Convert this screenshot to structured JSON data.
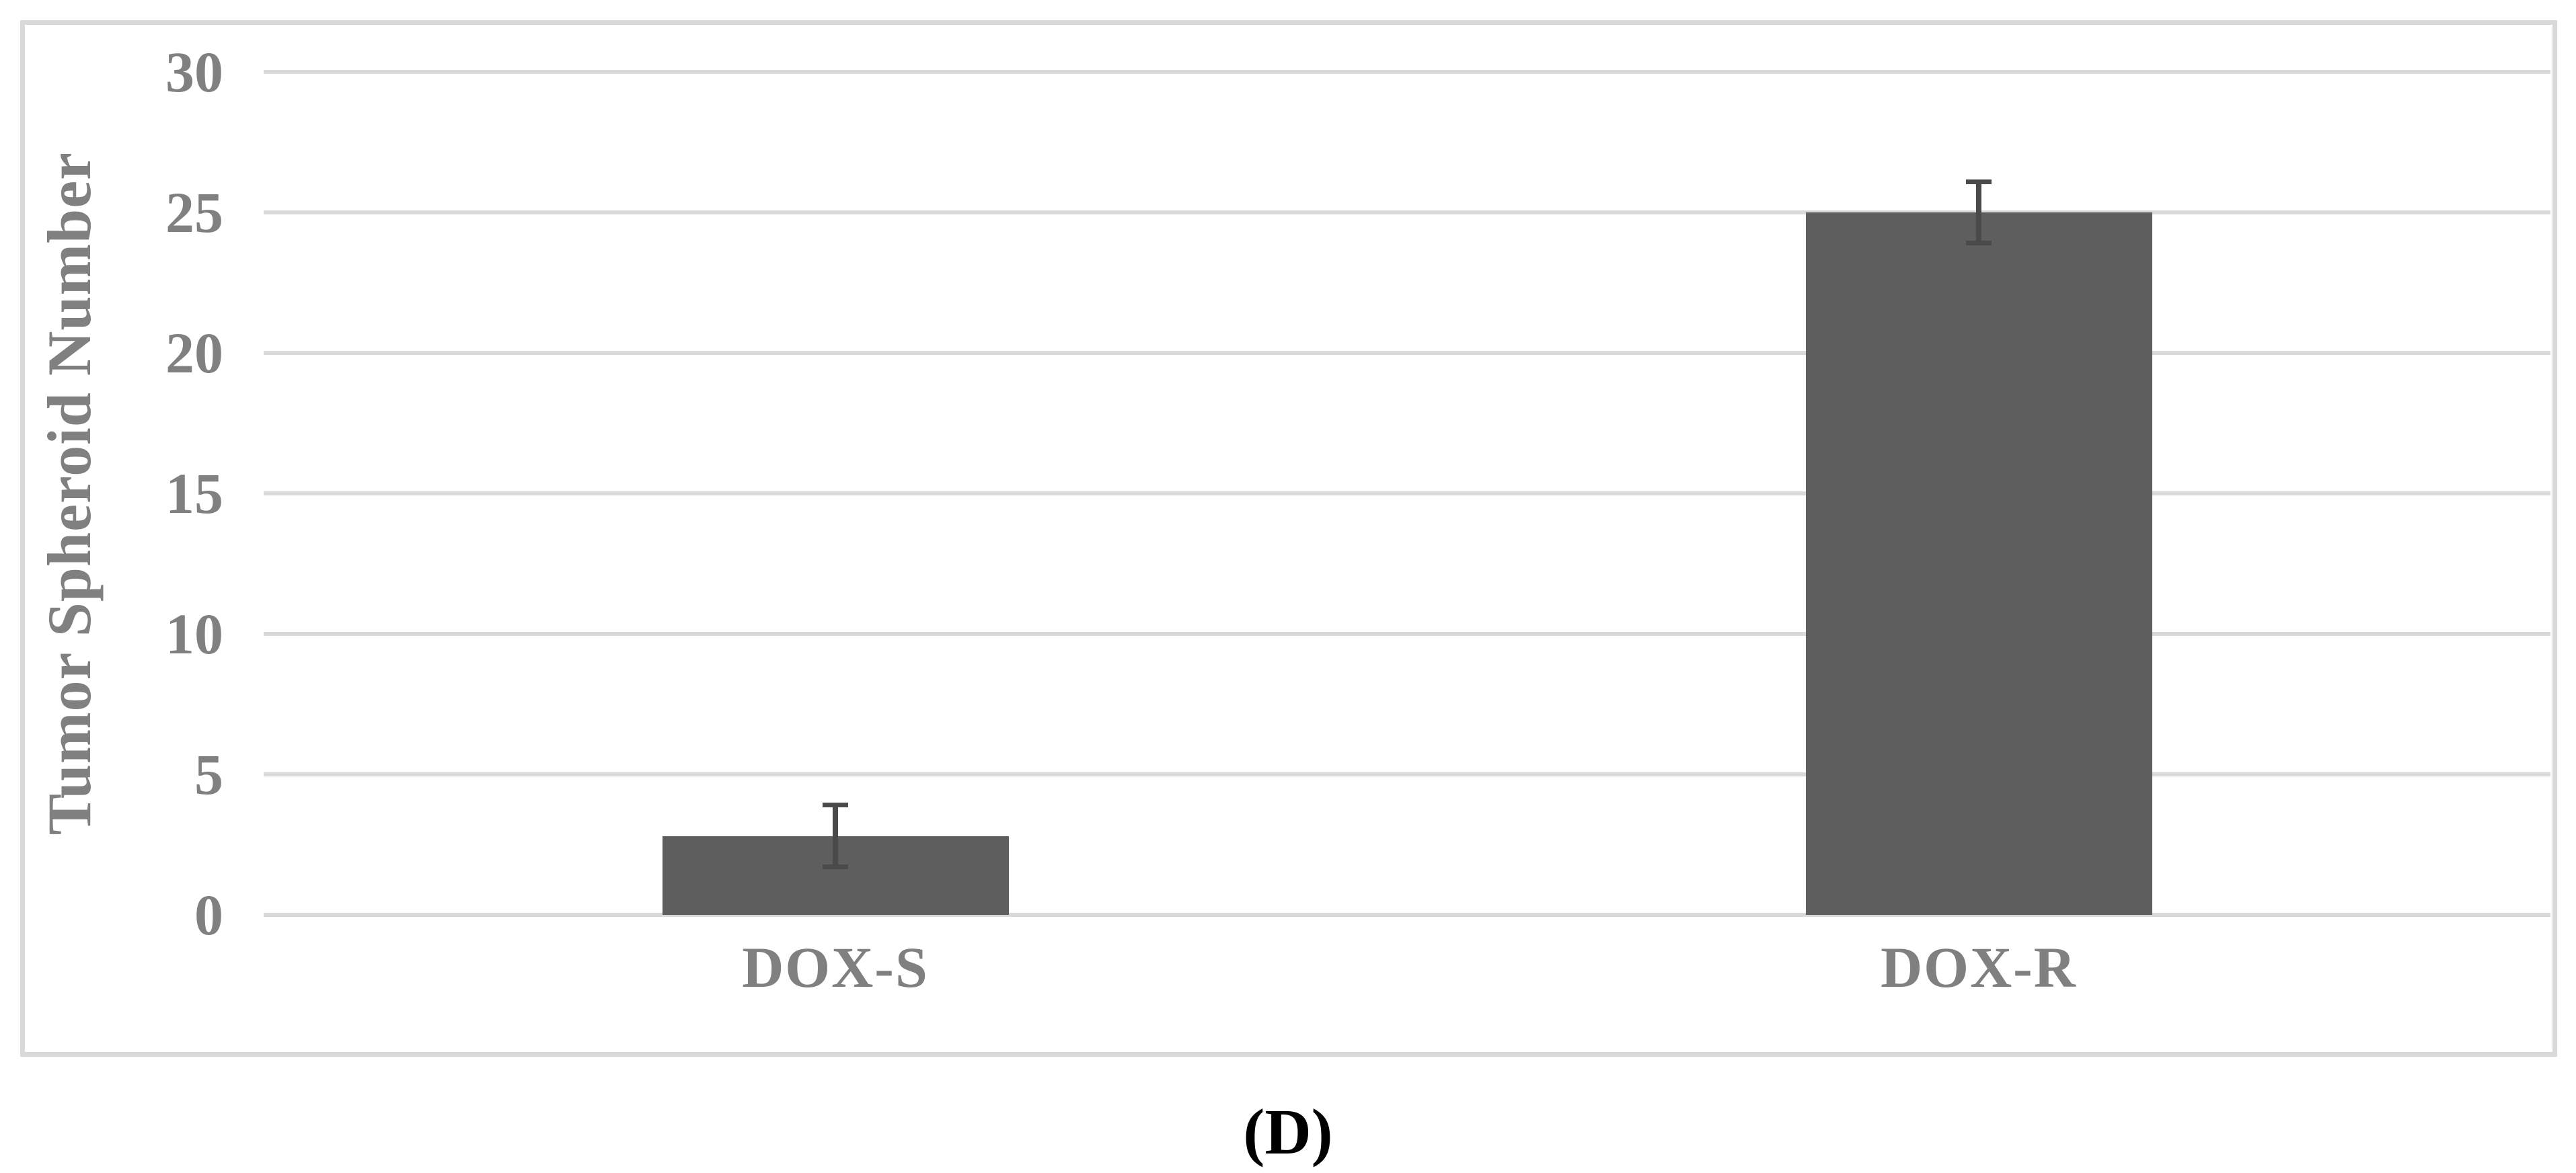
{
  "figure": {
    "caption": "(D)"
  },
  "chart_data": {
    "type": "bar",
    "title": "",
    "xlabel": "",
    "ylabel": "Tumor Spheroid Number",
    "categories": [
      "DOX-S",
      "DOX-R"
    ],
    "series": [
      {
        "name": "Tumor Spheroid Number",
        "values": [
          2.8,
          25
        ],
        "errors": [
          1.1,
          1.1
        ]
      }
    ],
    "ylim": [
      0,
      30
    ],
    "yticks": [
      0,
      5,
      10,
      15,
      20,
      25,
      30
    ],
    "grid": "horizontal gridlines on",
    "legend": "none",
    "colors": {
      "bar": "#5e5e5e",
      "error_bar": "#4a4a4a",
      "gridline": "#d9d9d9",
      "frame_border": "#d9d9d9",
      "axis_text": "#808080",
      "caption_text": "#000000",
      "background": "#ffffff"
    }
  }
}
